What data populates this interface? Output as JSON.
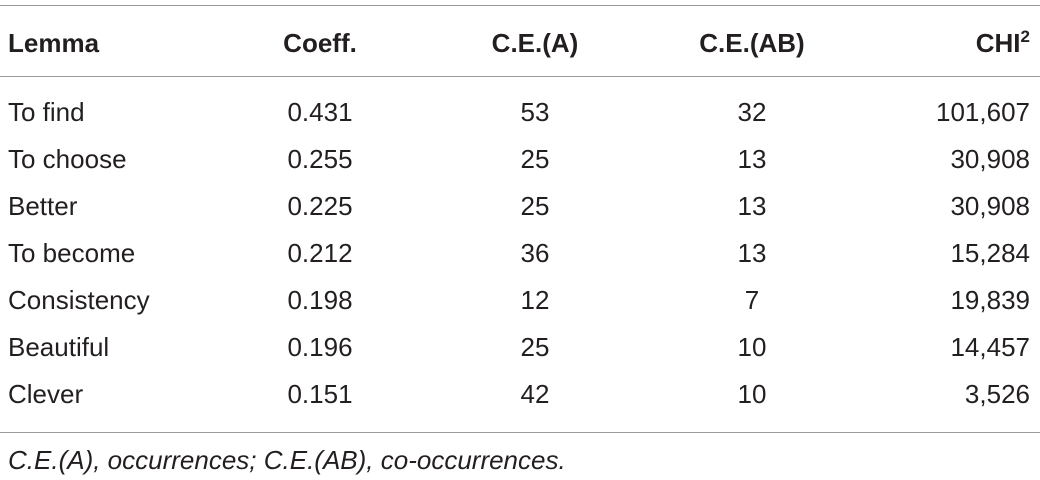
{
  "table": {
    "header": [
      "Lemma",
      "Coeff.",
      "C.E.(A)",
      "C.E.(AB)",
      "CHI"
    ],
    "header_superscript": "2",
    "rows": [
      [
        "To find",
        "0.431",
        "53",
        "32",
        "101,607"
      ],
      [
        "To choose",
        "0.255",
        "25",
        "13",
        "30,908"
      ],
      [
        "Better",
        "0.225",
        "25",
        "13",
        "30,908"
      ],
      [
        "To become",
        "0.212",
        "36",
        "13",
        "15,284"
      ],
      [
        "Consistency",
        "0.198",
        "12",
        "7",
        "19,839"
      ],
      [
        "Beautiful",
        "0.196",
        "25",
        "10",
        "14,457"
      ],
      [
        "Clever",
        "0.151",
        "42",
        "10",
        "3,526"
      ]
    ],
    "footnote": "C.E.(A), occurrences; C.E.(AB), co-occurrences."
  }
}
